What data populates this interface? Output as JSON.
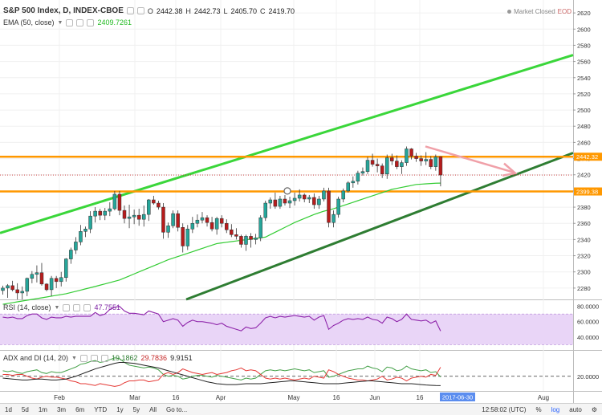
{
  "header": {
    "symbol": "S&P 500 Index, D, INDEX-CBOE",
    "ohlc": {
      "o_label": "O",
      "o": "2442.38",
      "h_label": "H",
      "h": "2442.73",
      "l_label": "L",
      "l": "2405.70",
      "c_label": "C",
      "c": "2419.70"
    },
    "ema_label": "EMA (50, close)",
    "ema_value": "2409.7261",
    "market_status": "Market Closed",
    "eod": "EOD"
  },
  "rsi_panel": {
    "label": "RSI (14, close)",
    "value": "47.7551"
  },
  "adx_panel": {
    "label": "ADX and DI (14, 20)",
    "plus_di": "19.1862",
    "minus_di": "29.7836",
    "adx": "9.9151"
  },
  "chart_data": [
    {
      "type": "candlestick",
      "y_ticks": [
        2280,
        2300,
        2320,
        2340,
        2360,
        2380,
        2400,
        2420,
        2440,
        2460,
        2480,
        2500,
        2520,
        2540,
        2560,
        2580,
        2600,
        2620
      ],
      "x_labels": [
        "Feb",
        "Mar",
        "16",
        "Apr",
        "May",
        "16",
        "Jun",
        "16",
        "Aug"
      ],
      "current_date": "2017-06-30",
      "price_tags": [
        {
          "value": 2442.32,
          "label": "2442.32"
        },
        {
          "value": 2399.38,
          "label": "2399.38"
        }
      ],
      "horizontal_levels": [
        2442.32,
        2399.38
      ],
      "last_close": 2419.7,
      "ohlc": [
        [
          2277.0,
          2283.0,
          2272.0,
          2280.0
        ],
        [
          2280.0,
          2285.0,
          2268.0,
          2283.0
        ],
        [
          2283.0,
          2289.0,
          2276.0,
          2278.0
        ],
        [
          2278.0,
          2286.0,
          2266.0,
          2274.0
        ],
        [
          2274.0,
          2282.0,
          2266.0,
          2276.0
        ],
        [
          2276.0,
          2293.0,
          2270.0,
          2292.0
        ],
        [
          2292.0,
          2301.0,
          2286.0,
          2297.0
        ],
        [
          2297.0,
          2308.0,
          2287.0,
          2299.0
        ],
        [
          2299.0,
          2311.0,
          2283.0,
          2285.0
        ],
        [
          2285.0,
          2286.0,
          2276.0,
          2278.0
        ],
        [
          2278.0,
          2295.0,
          2270.0,
          2292.0
        ],
        [
          2292.0,
          2295.0,
          2280.0,
          2288.0
        ],
        [
          2288.0,
          2300.0,
          2282.0,
          2293.0
        ],
        [
          2293.0,
          2317.0,
          2288.0,
          2316.0
        ],
        [
          2316.0,
          2330.0,
          2310.0,
          2327.0
        ],
        [
          2327.0,
          2343.0,
          2322.0,
          2337.0
        ],
        [
          2337.0,
          2358.0,
          2333.0,
          2350.0
        ],
        [
          2350.0,
          2356.0,
          2343.0,
          2353.0
        ],
        [
          2353.0,
          2375.0,
          2348.0,
          2369.0
        ],
        [
          2369.0,
          2380.0,
          2361.0,
          2375.0
        ],
        [
          2375.0,
          2378.0,
          2364.0,
          2370.0
        ],
        [
          2370.0,
          2379.0,
          2364.0,
          2375.0
        ],
        [
          2375.0,
          2386.0,
          2369.0,
          2378.0
        ],
        [
          2378.0,
          2400.0,
          2376.0,
          2396.0
        ],
        [
          2396.0,
          2400.0,
          2370.0,
          2376.0
        ],
        [
          2376.0,
          2382.0,
          2360.0,
          2366.0
        ],
        [
          2366.0,
          2383.0,
          2354.0,
          2368.0
        ],
        [
          2368.0,
          2377.0,
          2359.0,
          2370.0
        ],
        [
          2370.0,
          2378.0,
          2357.0,
          2365.0
        ],
        [
          2365.0,
          2382.0,
          2356.0,
          2371.0
        ],
        [
          2371.0,
          2390.0,
          2363.0,
          2389.0
        ],
        [
          2389.0,
          2394.0,
          2383.0,
          2385.0
        ],
        [
          2385.0,
          2388.0,
          2377.0,
          2380.0
        ],
        [
          2380.0,
          2385.0,
          2341.0,
          2349.0
        ],
        [
          2349.0,
          2361.0,
          2342.0,
          2357.0
        ],
        [
          2357.0,
          2376.0,
          2354.0,
          2372.0
        ],
        [
          2372.0,
          2376.0,
          2350.0,
          2355.0
        ],
        [
          2355.0,
          2360.0,
          2324.0,
          2332.0
        ],
        [
          2332.0,
          2358.0,
          2327.0,
          2353.0
        ],
        [
          2353.0,
          2368.0,
          2348.0,
          2360.0
        ],
        [
          2360.0,
          2371.0,
          2355.0,
          2364.0
        ],
        [
          2364.0,
          2374.0,
          2360.0,
          2367.0
        ],
        [
          2367.0,
          2370.0,
          2356.0,
          2361.0
        ],
        [
          2361.0,
          2368.0,
          2350.0,
          2353.0
        ],
        [
          2353.0,
          2368.0,
          2346.0,
          2366.0
        ],
        [
          2366.0,
          2370.0,
          2355.0,
          2360.0
        ],
        [
          2360.0,
          2365.0,
          2348.0,
          2352.0
        ],
        [
          2352.0,
          2359.0,
          2343.0,
          2346.0
        ],
        [
          2346.0,
          2354.0,
          2340.0,
          2344.0
        ],
        [
          2344.0,
          2346.0,
          2330.0,
          2334.0
        ],
        [
          2334.0,
          2346.0,
          2326.0,
          2344.0
        ],
        [
          2344.0,
          2348.0,
          2330.0,
          2340.0
        ],
        [
          2340.0,
          2347.0,
          2334.0,
          2342.0
        ],
        [
          2342.0,
          2370.0,
          2338.0,
          2367.0
        ],
        [
          2367.0,
          2388.0,
          2363.0,
          2385.0
        ],
        [
          2385.0,
          2392.0,
          2378.0,
          2389.0
        ],
        [
          2389.0,
          2398.0,
          2378.0,
          2381.0
        ],
        [
          2381.0,
          2394.0,
          2378.0,
          2390.0
        ],
        [
          2390.0,
          2395.0,
          2382.0,
          2385.0
        ],
        [
          2385.0,
          2393.0,
          2379.0,
          2388.0
        ],
        [
          2388.0,
          2398.0,
          2382.0,
          2391.0
        ],
        [
          2391.0,
          2402.0,
          2387.0,
          2395.0
        ],
        [
          2395.0,
          2397.0,
          2386.0,
          2390.0
        ],
        [
          2390.0,
          2395.0,
          2385.0,
          2392.0
        ],
        [
          2392.0,
          2397.0,
          2378.0,
          2383.0
        ],
        [
          2383.0,
          2394.0,
          2378.0,
          2390.0
        ],
        [
          2390.0,
          2404.0,
          2387.0,
          2400.0
        ],
        [
          2400.0,
          2404.0,
          2355.0,
          2361.0
        ],
        [
          2361.0,
          2376.0,
          2355.0,
          2371.0
        ],
        [
          2371.0,
          2393.0,
          2367.0,
          2390.0
        ],
        [
          2390.0,
          2403.0,
          2386.0,
          2400.0
        ],
        [
          2400.0,
          2412.0,
          2398.0,
          2410.0
        ],
        [
          2410.0,
          2418.0,
          2404.0,
          2412.0
        ],
        [
          2412.0,
          2425.0,
          2408.0,
          2422.0
        ],
        [
          2422.0,
          2429.0,
          2419.0,
          2424.0
        ],
        [
          2424.0,
          2442.0,
          2421.0,
          2438.0
        ],
        [
          2438.0,
          2446.0,
          2430.0,
          2433.0
        ],
        [
          2433.0,
          2440.0,
          2423.0,
          2431.0
        ],
        [
          2431.0,
          2434.0,
          2416.0,
          2421.0
        ],
        [
          2421.0,
          2445.0,
          2415.0,
          2441.0
        ],
        [
          2441.0,
          2446.0,
          2432.0,
          2437.0
        ],
        [
          2437.0,
          2444.0,
          2427.0,
          2430.0
        ],
        [
          2430.0,
          2438.0,
          2421.0,
          2435.0
        ],
        [
          2435.0,
          2455.0,
          2431.0,
          2452.0
        ],
        [
          2452.0,
          2453.0,
          2439.0,
          2443.0
        ],
        [
          2443.0,
          2447.0,
          2436.0,
          2440.0
        ],
        [
          2440.0,
          2444.0,
          2431.0,
          2437.0
        ],
        [
          2437.0,
          2448.0,
          2432.0,
          2439.0
        ],
        [
          2439.0,
          2443.0,
          2427.0,
          2430.0
        ],
        [
          2430.0,
          2445.0,
          2425.0,
          2442.0
        ],
        [
          2442.38,
          2442.73,
          2405.7,
          2419.7
        ]
      ],
      "ema50": [
        2260.0,
        2261.0,
        2262.0,
        2263.0,
        2264.0,
        2265.0,
        2266.0,
        2267.0,
        2268.0,
        2269.0,
        2270.0,
        2271.0,
        2272.0,
        2273.0,
        2274.5,
        2276.0,
        2277.5,
        2279.0,
        2280.5,
        2282.0,
        2283.6,
        2285.2,
        2286.8,
        2288.4,
        2290.0,
        2292.5,
        2295.0,
        2297.5,
        2300.0,
        2302.5,
        2305.0,
        2307.5,
        2310.0,
        2312.5,
        2315.0,
        2317.0,
        2319.0,
        2321.0,
        2323.0,
        2325.0,
        2327.0,
        2329.0,
        2331.0,
        2333.0,
        2335.0,
        2335.8,
        2336.6,
        2337.4,
        2338.2,
        2339.0,
        2339.8,
        2340.6,
        2341.4,
        2342.2,
        2343.0,
        2346.0,
        2349.0,
        2352.0,
        2355.0,
        2358.0,
        2361.0,
        2363.5,
        2366.0,
        2368.5,
        2371.0,
        2373.0,
        2375.0,
        2376.5,
        2378.0,
        2380.0,
        2382.0,
        2384.0,
        2386.0,
        2388.0,
        2390.0,
        2392.0,
        2394.0,
        2396.0,
        2398.0,
        2400.0,
        2402.0,
        2403.2,
        2404.4,
        2405.6,
        2406.8,
        2408.0,
        2408.4,
        2408.8,
        2409.2,
        2409.6,
        2409.73
      ]
    },
    {
      "type": "line",
      "name": "RSI",
      "y_ticks": [
        40,
        60,
        80
      ],
      "y_tick_labels": [
        "40.0000",
        "60.0000",
        "80.0000"
      ],
      "band": [
        30,
        70
      ],
      "values": [
        66.0,
        65.0,
        66.0,
        64.0,
        64.0,
        68.0,
        70.0,
        70.0,
        65.0,
        63.0,
        66.0,
        65.0,
        65.0,
        67.0,
        66.0,
        67.0,
        67.0,
        67.0,
        67.0,
        72.0,
        68.0,
        70.0,
        76.0,
        79.0,
        80.0,
        74.0,
        71.0,
        71.0,
        70.0,
        69.0,
        74.0,
        72.0,
        70.0,
        60.0,
        62.0,
        64.0,
        62.0,
        54.0,
        59.0,
        62.0,
        60.0,
        60.0,
        59.0,
        58.0,
        56.0,
        58.0,
        54.0,
        52.0,
        50.0,
        48.0,
        53.0,
        51.0,
        52.0,
        58.0,
        65.0,
        67.0,
        65.0,
        67.0,
        66.0,
        67.0,
        68.0,
        67.0,
        66.0,
        67.0,
        62.0,
        66.0,
        68.0,
        50.0,
        55.0,
        58.0,
        62.0,
        64.0,
        63.0,
        64.0,
        63.0,
        66.0,
        63.0,
        62.0,
        58.0,
        66.0,
        64.0,
        60.0,
        63.0,
        70.0,
        63.0,
        62.0,
        61.0,
        62.0,
        58.0,
        61.0,
        47.76
      ]
    },
    {
      "type": "line",
      "name": "ADX and DI",
      "y_ticks": [
        20
      ],
      "y_tick_labels": [
        "20.0000"
      ],
      "threshold": 20,
      "plus_di": [
        26.0,
        25.0,
        26.0,
        24.0,
        23.0,
        25.0,
        26.0,
        27.0,
        24.0,
        23.0,
        25.0,
        24.0,
        24.0,
        26.0,
        28.0,
        30.0,
        33.0,
        34.0,
        36.0,
        37.0,
        35.0,
        36.0,
        38.0,
        40.0,
        39.0,
        35.0,
        32.0,
        31.0,
        30.0,
        29.0,
        30.0,
        29.0,
        27.0,
        22.0,
        20.0,
        21.0,
        20.0,
        17.0,
        18.0,
        20.0,
        21.0,
        21.0,
        20.0,
        19.0,
        21.0,
        20.0,
        19.0,
        18.0,
        17.0,
        16.0,
        18.0,
        17.0,
        18.0,
        22.0,
        26.0,
        27.0,
        26.0,
        27.0,
        26.0,
        27.0,
        28.0,
        27.0,
        26.0,
        27.0,
        24.0,
        25.0,
        26.0,
        19.0,
        20.0,
        22.0,
        24.0,
        26.0,
        27.0,
        28.0,
        28.0,
        31.0,
        29.0,
        28.0,
        25.0,
        30.0,
        29.0,
        26.0,
        27.0,
        31.0,
        28.0,
        27.0,
        26.0,
        27.0,
        24.0,
        25.0,
        19.19
      ],
      "minus_di": [
        22.0,
        22.0,
        21.0,
        22.0,
        22.0,
        20.0,
        18.0,
        17.0,
        19.0,
        20.0,
        19.0,
        19.0,
        18.0,
        17.0,
        15.0,
        14.0,
        12.0,
        12.0,
        11.0,
        10.0,
        12.0,
        11.0,
        10.0,
        9.0,
        10.0,
        13.0,
        15.0,
        15.0,
        16.0,
        16.0,
        14.0,
        15.0,
        16.0,
        22.0,
        24.0,
        22.0,
        24.0,
        28.0,
        26.0,
        24.0,
        23.0,
        22.0,
        23.0,
        24.0,
        22.0,
        23.0,
        24.0,
        26.0,
        27.0,
        29.0,
        26.0,
        27.0,
        26.0,
        22.0,
        18.0,
        17.0,
        18.0,
        17.0,
        18.0,
        17.0,
        16.0,
        17.0,
        18.0,
        17.0,
        20.0,
        19.0,
        18.0,
        27.0,
        25.0,
        22.0,
        20.0,
        18.0,
        17.0,
        16.0,
        16.0,
        15.0,
        16.0,
        17.0,
        20.0,
        16.0,
        17.0,
        19.0,
        18.0,
        15.0,
        18.0,
        19.0,
        20.0,
        19.0,
        22.0,
        21.0,
        29.78
      ],
      "adx": [
        18.0,
        17.5,
        17.0,
        16.5,
        16.0,
        16.0,
        16.5,
        17.0,
        17.0,
        16.5,
        16.0,
        16.0,
        16.5,
        17.0,
        18.5,
        20.0,
        22.0,
        24.0,
        26.0,
        28.0,
        29.5,
        31.0,
        32.5,
        34.0,
        35.0,
        35.0,
        34.5,
        34.0,
        33.0,
        32.0,
        31.0,
        30.0,
        29.0,
        27.5,
        26.0,
        24.5,
        23.0,
        21.5,
        20.0,
        18.5,
        17.0,
        15.5,
        14.0,
        13.0,
        12.0,
        11.5,
        11.0,
        11.0,
        11.0,
        11.5,
        12.0,
        12.0,
        12.0,
        12.0,
        12.5,
        13.0,
        13.5,
        14.0,
        14.5,
        15.0,
        15.0,
        14.5,
        14.0,
        13.5,
        13.0,
        12.5,
        12.0,
        12.0,
        12.0,
        12.0,
        12.5,
        13.0,
        13.5,
        14.0,
        14.5,
        15.0,
        15.0,
        14.5,
        14.0,
        13.5,
        13.0,
        12.5,
        12.0,
        12.0,
        12.0,
        11.5,
        11.0,
        10.5,
        10.2,
        10.0,
        9.92
      ]
    }
  ],
  "toolbar": {
    "ranges": [
      "1d",
      "5d",
      "1m",
      "3m",
      "6m",
      "YTD",
      "1y",
      "5y",
      "All",
      "Go to..."
    ],
    "time": "12:58:02 (UTC)",
    "percent": "%",
    "log": "log",
    "auto": "auto",
    "settings": "⚙"
  },
  "colors": {
    "up": "#26a69a",
    "down": "#b71c1c",
    "ema": "#33cc33",
    "level": "#ff9800",
    "channel_upper": "#3ad63a",
    "channel_lower": "#2e7d32",
    "arrow": "#f0a0a8",
    "rsi": "#8e24aa",
    "rsi_band": "#e9d5f7",
    "date_tag": "#5b8def"
  }
}
